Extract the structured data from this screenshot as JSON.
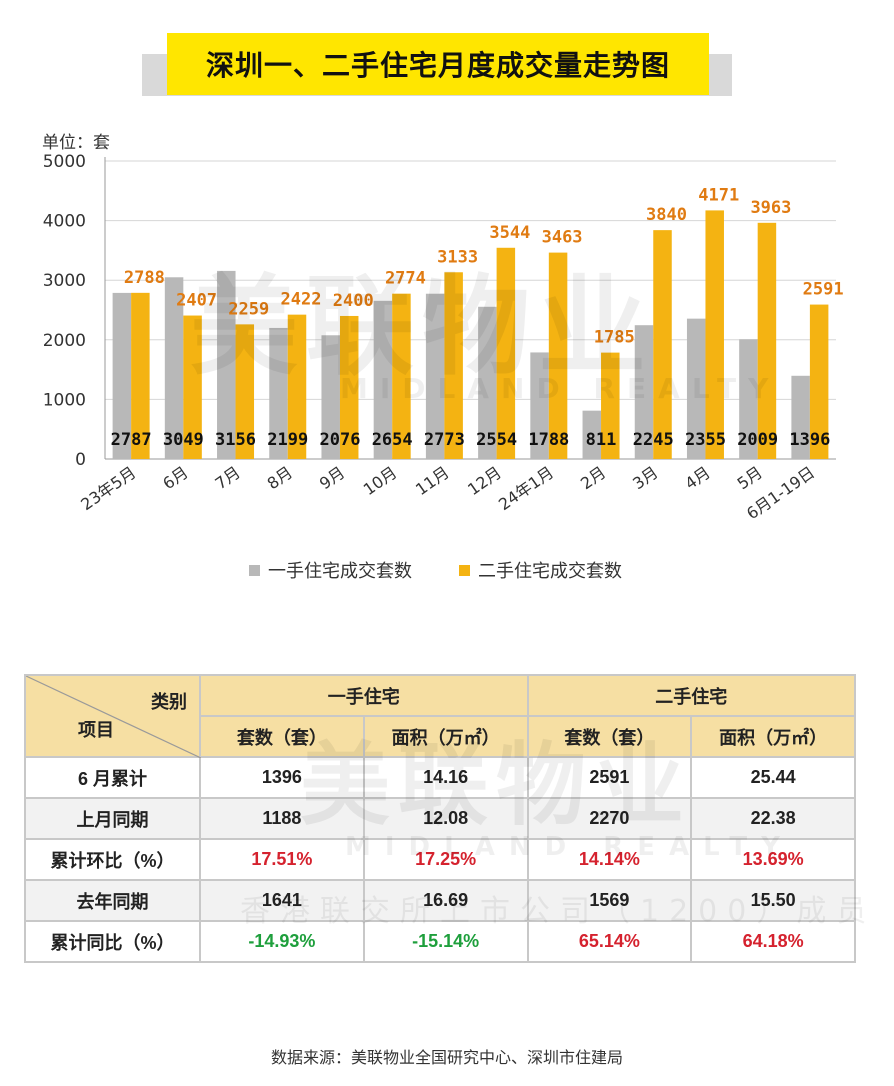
{
  "title": "深圳一、二手住宅月度成交量走势图",
  "unit_label": "单位：套",
  "colors": {
    "primary": "#b8b8b8",
    "secondary": "#f4b312",
    "value_secondary": "#e07b12",
    "title_bg": "#ffe600",
    "positive": "#d5222e",
    "negative": "#1e9f3c"
  },
  "chart_data": {
    "type": "bar",
    "categories": [
      "23年5月",
      "6月",
      "7月",
      "8月",
      "9月",
      "10月",
      "11月",
      "12月",
      "24年1月",
      "2月",
      "3月",
      "4月",
      "5月",
      "6月1-19日"
    ],
    "series": [
      {
        "name": "一手住宅成交套数",
        "values": [
          2787,
          3049,
          3156,
          2199,
          2076,
          2654,
          2773,
          2554,
          1788,
          811,
          2245,
          2355,
          2009,
          1396
        ]
      },
      {
        "name": "二手住宅成交套数",
        "values": [
          2788,
          2407,
          2259,
          2422,
          2400,
          2774,
          3133,
          3544,
          3463,
          1785,
          3840,
          4171,
          3963,
          2591
        ]
      }
    ],
    "yticks": [
      0,
      1000,
      2000,
      3000,
      4000,
      5000
    ],
    "ylim": [
      0,
      5000
    ],
    "grid": true,
    "legend_position": "bottom"
  },
  "table": {
    "corner_top": "类别",
    "corner_bottom": "项目",
    "group_headers": [
      "一手住宅",
      "二手住宅"
    ],
    "sub_headers": [
      "套数（套）",
      "面积（万㎡）",
      "套数（套）",
      "面积（万㎡）"
    ],
    "rows": [
      {
        "label": "6 月累计",
        "cells": [
          "1396",
          "14.16",
          "2591",
          "25.44"
        ]
      },
      {
        "label": "上月同期",
        "cells": [
          "1188",
          "12.08",
          "2270",
          "22.38"
        ]
      },
      {
        "label": "累计环比（%）",
        "cells": [
          "17.51%",
          "17.25%",
          "14.14%",
          "13.69%"
        ]
      },
      {
        "label": "去年同期",
        "cells": [
          "1641",
          "16.69",
          "1569",
          "15.50"
        ]
      },
      {
        "label": "累计同比（%）",
        "cells": [
          "-14.93%",
          "-15.14%",
          "65.14%",
          "64.18%"
        ]
      }
    ]
  },
  "watermark": {
    "cn": "美联物业",
    "en": "MIDLAND REALTY",
    "sub": "香港联交所上市公司（1200）成员"
  },
  "source": "数据来源：美联物业全国研究中心、深圳市住建局"
}
